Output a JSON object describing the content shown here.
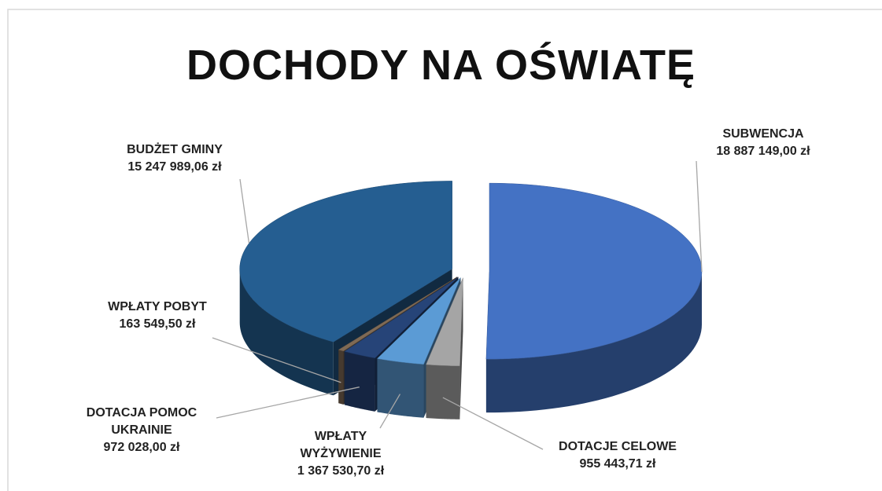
{
  "chart_data": {
    "type": "pie",
    "title": "DOCHODY NA OŚWIATĘ",
    "categories": [
      "SUBWENCJA",
      "DOTACJE CELOWE",
      "WPŁATY WYŻYWIENIE",
      "DOTACJA POMOC UKRAINIE",
      "WPŁATY POBYT",
      "BUDŻET GMINY"
    ],
    "values": [
      18887149.0,
      955443.71,
      1367530.7,
      972028.0,
      163549.5,
      15247989.06
    ],
    "value_labels": [
      "18 887 149,00 zł",
      "955 443,71 zł",
      "1 367 530,70 zł",
      "972 028,00 zł",
      "163 549,50 zł",
      "15 247 989,06 zł"
    ],
    "colors": [
      "#4472c4",
      "#a5a5a5",
      "#5b9bd5",
      "#264478",
      "#7f6a55",
      "#255e91"
    ]
  }
}
